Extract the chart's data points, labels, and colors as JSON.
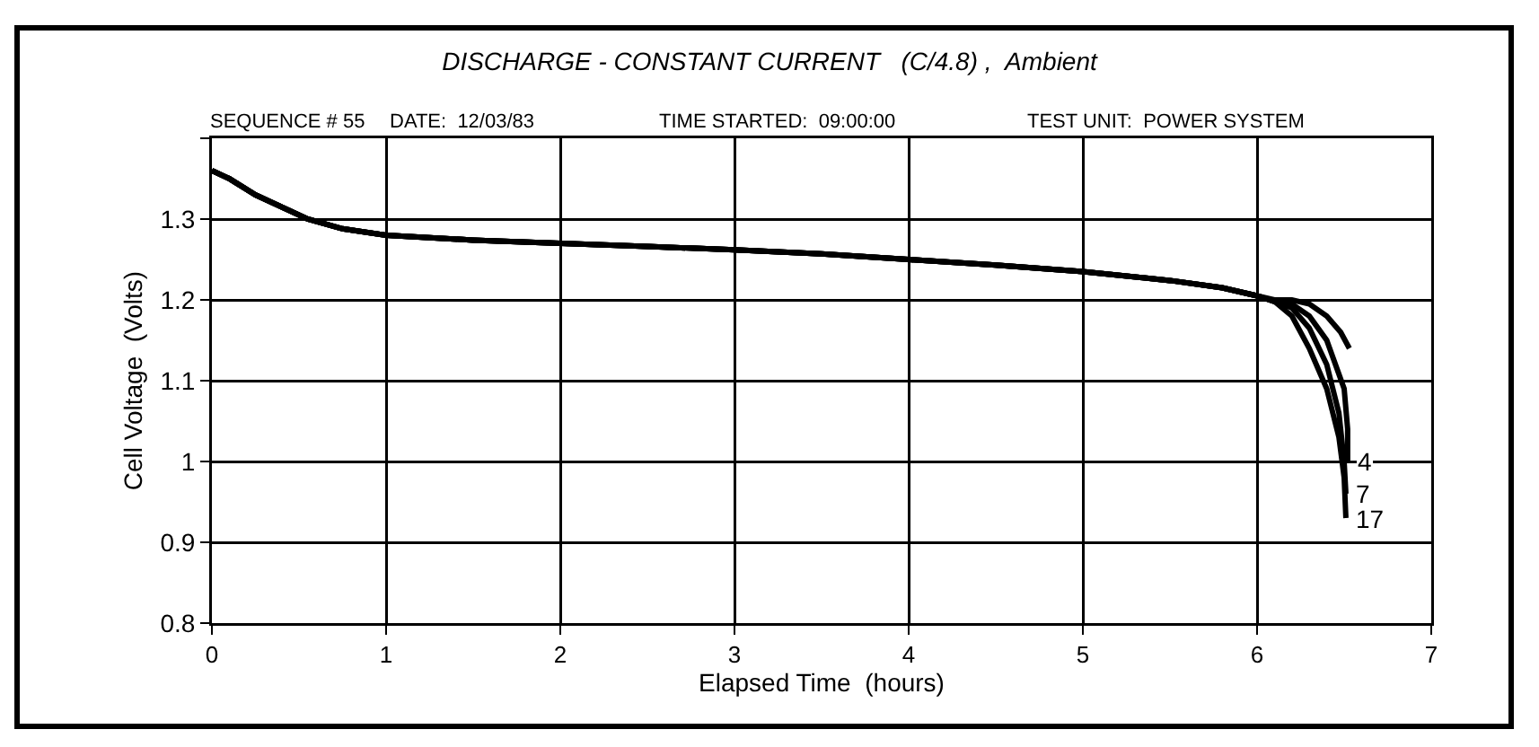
{
  "chart_data": {
    "type": "line",
    "title": "DISCHARGE - CONSTANT CURRENT   (C/4.8) ,  Ambient",
    "annotations": [
      "SEQUENCE # 55",
      "DATE:  12/03/83",
      "TIME STARTED:  09:00:00",
      "TEST UNIT:  POWER SYSTEM"
    ],
    "xlabel": "Elapsed Time  (hours)",
    "ylabel": "Cell Voltage  (Volts)",
    "series": [
      {
        "color": "#000000",
        "x": [
          0,
          0.1,
          0.25,
          0.4,
          0.55,
          0.75,
          1,
          1.5,
          2,
          2.5,
          3,
          3.5,
          4,
          4.5,
          5,
          5.5,
          5.8,
          6.0,
          6.1,
          6.2,
          6.3,
          6.4,
          6.48,
          6.53
        ],
        "values": [
          1.36,
          1.35,
          1.33,
          1.315,
          1.3,
          1.288,
          1.28,
          1.274,
          1.27,
          1.266,
          1.262,
          1.257,
          1.25,
          1.243,
          1.235,
          1.224,
          1.215,
          1.205,
          1.2,
          1.2,
          1.195,
          1.18,
          1.16,
          1.14
        ]
      },
      {
        "name": "4",
        "color": "#000000",
        "x": [
          0,
          0.1,
          0.25,
          0.4,
          0.55,
          0.75,
          1,
          1.5,
          2,
          2.5,
          3,
          3.5,
          4,
          4.5,
          5,
          5.5,
          5.8,
          6.0,
          6.1,
          6.2,
          6.3,
          6.4,
          6.5,
          6.52,
          6.52
        ],
        "values": [
          1.36,
          1.35,
          1.33,
          1.315,
          1.3,
          1.288,
          1.28,
          1.274,
          1.27,
          1.266,
          1.262,
          1.257,
          1.25,
          1.243,
          1.235,
          1.224,
          1.215,
          1.205,
          1.198,
          1.195,
          1.18,
          1.15,
          1.09,
          1.04,
          1.0
        ]
      },
      {
        "name": "7",
        "color": "#000000",
        "x": [
          0,
          0.1,
          0.25,
          0.4,
          0.55,
          0.75,
          1,
          1.5,
          2,
          2.5,
          3,
          3.5,
          4,
          4.5,
          5,
          5.5,
          5.8,
          6.0,
          6.1,
          6.2,
          6.3,
          6.4,
          6.47,
          6.5,
          6.51
        ],
        "values": [
          1.36,
          1.35,
          1.33,
          1.315,
          1.3,
          1.288,
          1.28,
          1.274,
          1.27,
          1.266,
          1.262,
          1.257,
          1.25,
          1.243,
          1.235,
          1.224,
          1.215,
          1.205,
          1.198,
          1.19,
          1.165,
          1.12,
          1.06,
          1.0,
          0.96
        ]
      },
      {
        "name": "17",
        "color": "#000000",
        "x": [
          0,
          0.1,
          0.25,
          0.4,
          0.55,
          0.75,
          1,
          1.5,
          2,
          2.5,
          3,
          3.5,
          4,
          4.5,
          5,
          5.5,
          5.8,
          6.0,
          6.1,
          6.2,
          6.3,
          6.4,
          6.47,
          6.5,
          6.51
        ],
        "values": [
          1.36,
          1.35,
          1.33,
          1.315,
          1.3,
          1.288,
          1.28,
          1.274,
          1.27,
          1.266,
          1.262,
          1.257,
          1.25,
          1.243,
          1.235,
          1.224,
          1.215,
          1.205,
          1.198,
          1.18,
          1.14,
          1.09,
          1.03,
          0.98,
          0.93
        ]
      }
    ],
    "xlim": [
      0,
      7
    ],
    "xticks": [
      0,
      1,
      2,
      3,
      4,
      5,
      6,
      7
    ],
    "ylim": [
      0.8,
      1.4
    ],
    "yticks": [
      {
        "value": 0.8,
        "label": "0.8"
      },
      {
        "value": 0.9,
        "label": "0.9"
      },
      {
        "value": 1.0,
        "label": "1"
      },
      {
        "value": 1.1,
        "label": "1.1"
      },
      {
        "value": 1.2,
        "label": "1.2"
      },
      {
        "value": 1.3,
        "label": "1.3"
      },
      {
        "value": 1.4,
        "label": null
      }
    ],
    "grid": true,
    "legend": false,
    "line_style": "solid",
    "marker": "none"
  }
}
